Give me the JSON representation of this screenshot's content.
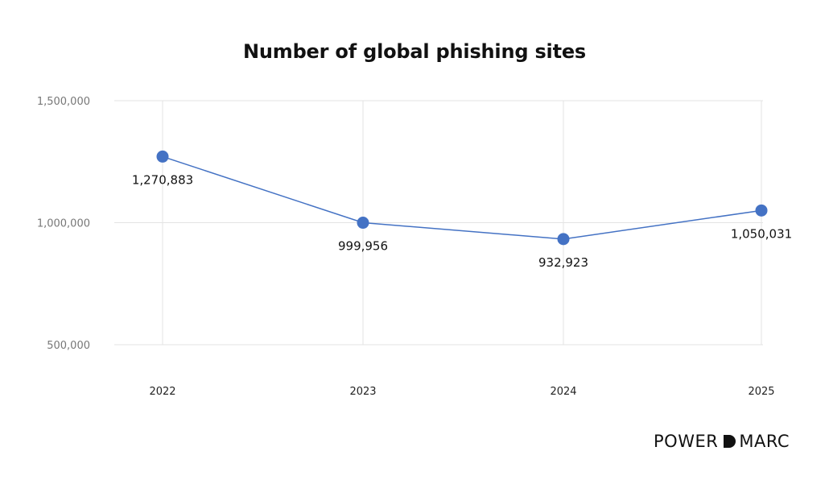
{
  "chart_data": {
    "type": "line",
    "title": "Number of global phishing sites",
    "xlabel": "",
    "ylabel": "",
    "categories": [
      "2022",
      "2023",
      "2024",
      "2025"
    ],
    "series": [
      {
        "values": [
          1270883,
          999956,
          932923,
          1050031
        ],
        "labels": [
          "1,270,883",
          "999,956",
          "932,923",
          "1,050,031"
        ],
        "color": "#4472c4"
      }
    ],
    "ylim": [
      500000,
      1500000
    ],
    "yticks": [
      500000,
      1000000,
      1500000
    ],
    "ytick_labels": [
      "500,000",
      "1,000,000",
      "1,500,000"
    ],
    "grid": true,
    "legend": "none"
  },
  "brand": {
    "left": "POWER",
    "right": "MARC"
  },
  "colors": {
    "series_line": "#4472c4",
    "grid": "#e3e3e3",
    "text": "#111111"
  }
}
